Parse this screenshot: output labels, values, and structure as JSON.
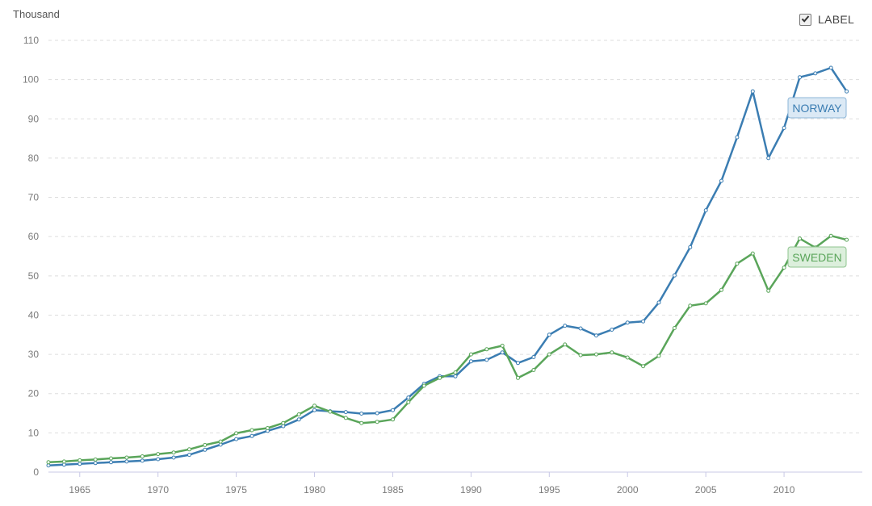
{
  "unit_label": "Thousand",
  "toggle": {
    "label": "LABEL",
    "checked": true
  },
  "colors": {
    "norway": "#3b7db2",
    "sweden": "#5aa55a",
    "grid": "#dddddd",
    "axis": "#c8c8e6"
  },
  "chart_data": {
    "type": "line",
    "ylabel": "Thousand",
    "xlim": [
      1963,
      2015
    ],
    "ylim": [
      0,
      110
    ],
    "yticks": [
      0,
      10,
      20,
      30,
      40,
      50,
      60,
      70,
      80,
      90,
      100,
      110
    ],
    "xticks": [
      1965,
      1970,
      1975,
      1980,
      1985,
      1990,
      1995,
      2000,
      2005,
      2010
    ],
    "grid": true,
    "x": [
      1963,
      1964,
      1965,
      1966,
      1967,
      1968,
      1969,
      1970,
      1971,
      1972,
      1973,
      1974,
      1975,
      1976,
      1977,
      1978,
      1979,
      1980,
      1981,
      1982,
      1983,
      1984,
      1985,
      1986,
      1987,
      1988,
      1989,
      1990,
      1991,
      1992,
      1993,
      1994,
      1995,
      1996,
      1997,
      1998,
      1999,
      2000,
      2001,
      2002,
      2003,
      2004,
      2005,
      2006,
      2007,
      2008,
      2009,
      2010,
      2011,
      2012,
      2013,
      2014
    ],
    "series": [
      {
        "name": "NORWAY",
        "values": [
          1.7,
          1.9,
          2.1,
          2.3,
          2.5,
          2.7,
          2.9,
          3.3,
          3.7,
          4.4,
          5.7,
          7.0,
          8.4,
          9.2,
          10.5,
          11.7,
          13.4,
          15.8,
          15.5,
          15.3,
          14.9,
          15.0,
          15.8,
          19.0,
          22.5,
          24.4,
          24.4,
          28.2,
          28.6,
          30.5,
          27.8,
          29.3,
          35.0,
          37.3,
          36.6,
          34.8,
          36.3,
          38.1,
          38.4,
          43.2,
          50.1,
          57.3,
          66.7,
          74.2,
          85.3,
          97.0,
          80.0,
          87.7,
          100.6,
          101.6,
          103.0,
          97.0
        ]
      },
      {
        "name": "SWEDEN",
        "values": [
          2.5,
          2.7,
          3.0,
          3.2,
          3.5,
          3.7,
          4.0,
          4.6,
          5.0,
          5.8,
          6.9,
          7.8,
          9.9,
          10.7,
          11.2,
          12.5,
          14.7,
          16.9,
          15.4,
          13.8,
          12.5,
          12.8,
          13.4,
          17.8,
          22.0,
          24.0,
          25.4,
          30.0,
          31.3,
          32.2,
          24.0,
          26.0,
          30.0,
          32.5,
          29.8,
          30.0,
          30.5,
          29.2,
          27.0,
          29.6,
          36.7,
          42.4,
          43.0,
          46.4,
          53.1,
          55.7,
          46.2,
          52.1,
          59.5,
          57.2,
          60.2,
          59.2
        ]
      }
    ]
  }
}
